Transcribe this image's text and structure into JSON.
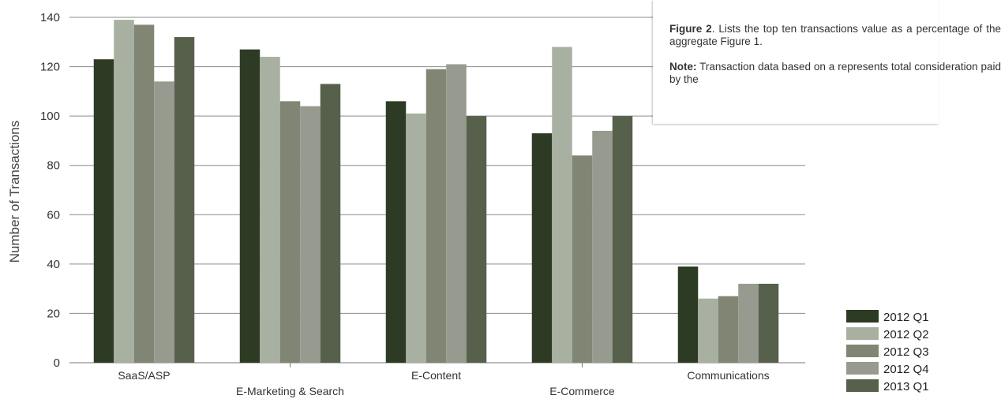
{
  "chart_data": {
    "type": "bar",
    "title": "",
    "xlabel": "",
    "ylabel": "Number of Transactions",
    "ylim": [
      0,
      140
    ],
    "yticks": [
      0,
      20,
      40,
      60,
      80,
      100,
      120,
      140
    ],
    "grid": true,
    "legend_position": "bottom-right",
    "categories": [
      "SaaS/ASP",
      "E-Marketing & Search",
      "E-Content",
      "E-Commerce",
      "Communications"
    ],
    "series": [
      {
        "name": "2012 Q1",
        "color": "#2e3b24",
        "values": [
          123,
          127,
          106,
          93,
          39
        ]
      },
      {
        "name": "2012 Q2",
        "color": "#a8b0a2",
        "values": [
          139,
          124,
          101,
          128,
          26
        ]
      },
      {
        "name": "2012 Q3",
        "color": "#808673",
        "values": [
          137,
          106,
          119,
          84,
          27
        ]
      },
      {
        "name": "2012 Q4",
        "color": "#979b8f",
        "values": [
          114,
          104,
          121,
          94,
          32
        ]
      },
      {
        "name": "2013 Q1",
        "color": "#56604b",
        "values": [
          132,
          113,
          100,
          100,
          32
        ]
      }
    ]
  },
  "note": {
    "figure_label": "Figure 2",
    "figure_text": ". Lists the top ten transactions value as a percentage of the aggregate Figure 1.",
    "note_label": "Note:",
    "note_text": " Transaction data based on a represents total consideration paid by the"
  }
}
